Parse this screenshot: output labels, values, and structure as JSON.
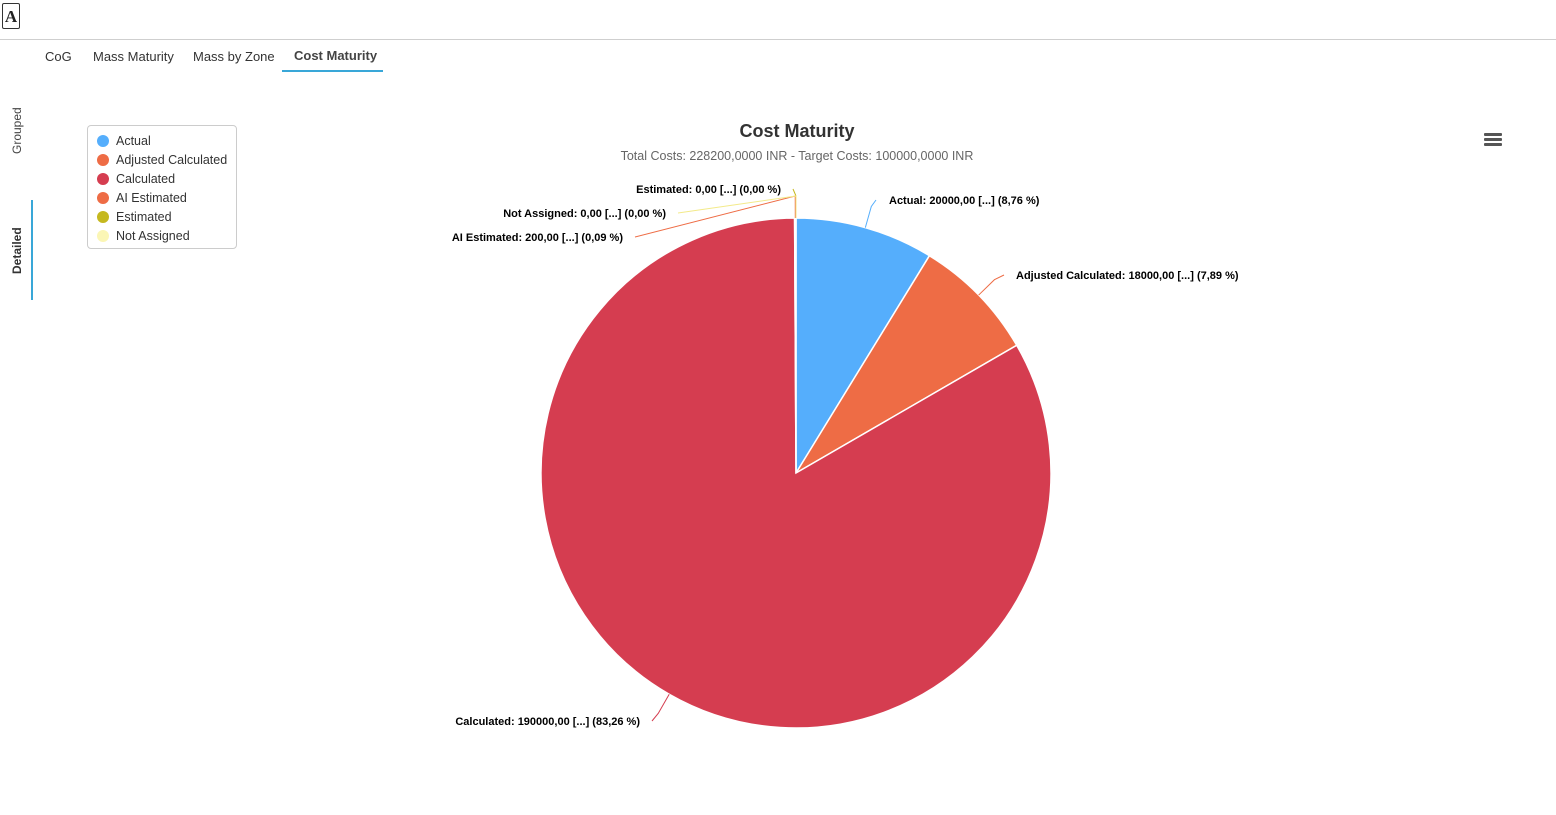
{
  "app": {
    "logo_letter": "A"
  },
  "tabs": [
    {
      "label": "CoG",
      "active": false
    },
    {
      "label": "Mass Maturity",
      "active": false
    },
    {
      "label": "Mass by Zone",
      "active": false
    },
    {
      "label": "Cost Maturity",
      "active": true
    }
  ],
  "side_tabs": [
    {
      "label": "Grouped",
      "active": false
    },
    {
      "label": "Detailed",
      "active": true
    }
  ],
  "menu": {
    "icon": "hamburger-menu-icon"
  },
  "chart_data": {
    "type": "pie",
    "title": "Cost Maturity",
    "subtitle": "Total Costs: 228200,0000 INR - Target Costs: 100000,0000 INR",
    "legend_position": "top-left",
    "series": [
      {
        "name": "Actual",
        "value": 20000,
        "color": "#55aefc",
        "label": "Actual: 20000,00 [...] (8,76 %)"
      },
      {
        "name": "Adjusted Calculated",
        "value": 18000,
        "color": "#ee6c45",
        "label": "Adjusted Calculated: 18000,00 [...] (7,89 %)"
      },
      {
        "name": "Calculated",
        "value": 190000,
        "color": "#d53d50",
        "label": "Calculated: 190000,00 [...] (83,26 %)"
      },
      {
        "name": "AI Estimated",
        "value": 200,
        "color": "#ee6c45",
        "label": "AI Estimated: 200,00 [...] (0,09 %)"
      },
      {
        "name": "Estimated",
        "value": 0,
        "color": "#c5b81f",
        "label": "Estimated: 0,00 [...] (0,00 %)"
      },
      {
        "name": "Not Assigned",
        "value": 0,
        "color": "#fbf6b5",
        "label": "Not Assigned: 0,00 [...] (0,00 %)"
      }
    ]
  }
}
